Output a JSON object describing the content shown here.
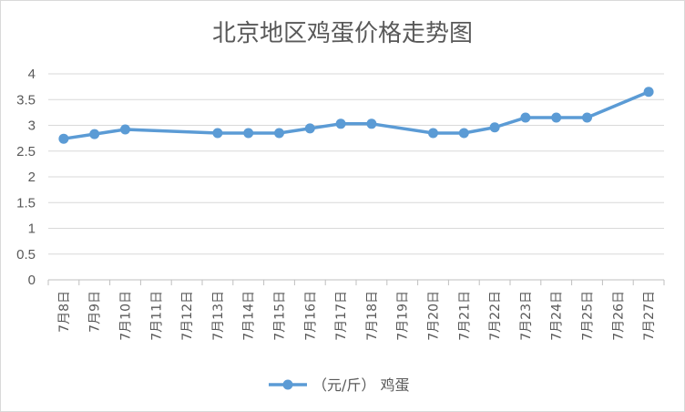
{
  "chart_data": {
    "type": "line",
    "title": "北京地区鸡蛋价格走势图",
    "xlabel": "",
    "ylabel": "",
    "ylim": [
      0,
      4
    ],
    "yticks": [
      "0",
      "0.5",
      "1",
      "1.5",
      "2",
      "2.5",
      "3",
      "3.5",
      "4"
    ],
    "grid": true,
    "legend_position": "bottom",
    "categories": [
      "7月8日",
      "7月9日",
      "7月10日",
      "7月11日",
      "7月12日",
      "7月13日",
      "7月14日",
      "7月15日",
      "7月16日",
      "7月17日",
      "7月18日",
      "7月19日",
      "7月20日",
      "7月21日",
      "7月22日",
      "7月23日",
      "7月24日",
      "7月25日",
      "7月26日",
      "7月27日"
    ],
    "series": [
      {
        "name": "（元/斤） 鸡蛋",
        "color": "#5b9bd5",
        "values": [
          2.74,
          2.83,
          2.92,
          null,
          null,
          2.85,
          2.85,
          2.85,
          2.94,
          3.03,
          3.03,
          null,
          2.85,
          2.85,
          2.96,
          3.15,
          3.15,
          3.15,
          null,
          3.65
        ]
      }
    ]
  }
}
